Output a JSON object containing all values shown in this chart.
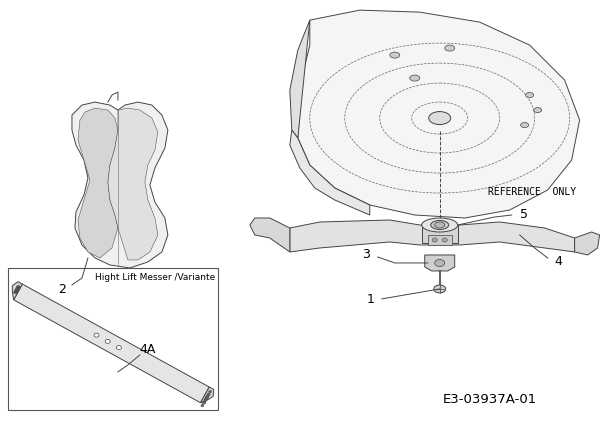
{
  "background_color": "#ffffff",
  "line_color": "#444444",
  "label_color": "#000000",
  "fig_width": 6.0,
  "fig_height": 4.24,
  "part_number": "E3-03937A-01",
  "reference_text": "REFERENCE  ONLY",
  "inset_label": "Hight Lift Messer /Variante"
}
